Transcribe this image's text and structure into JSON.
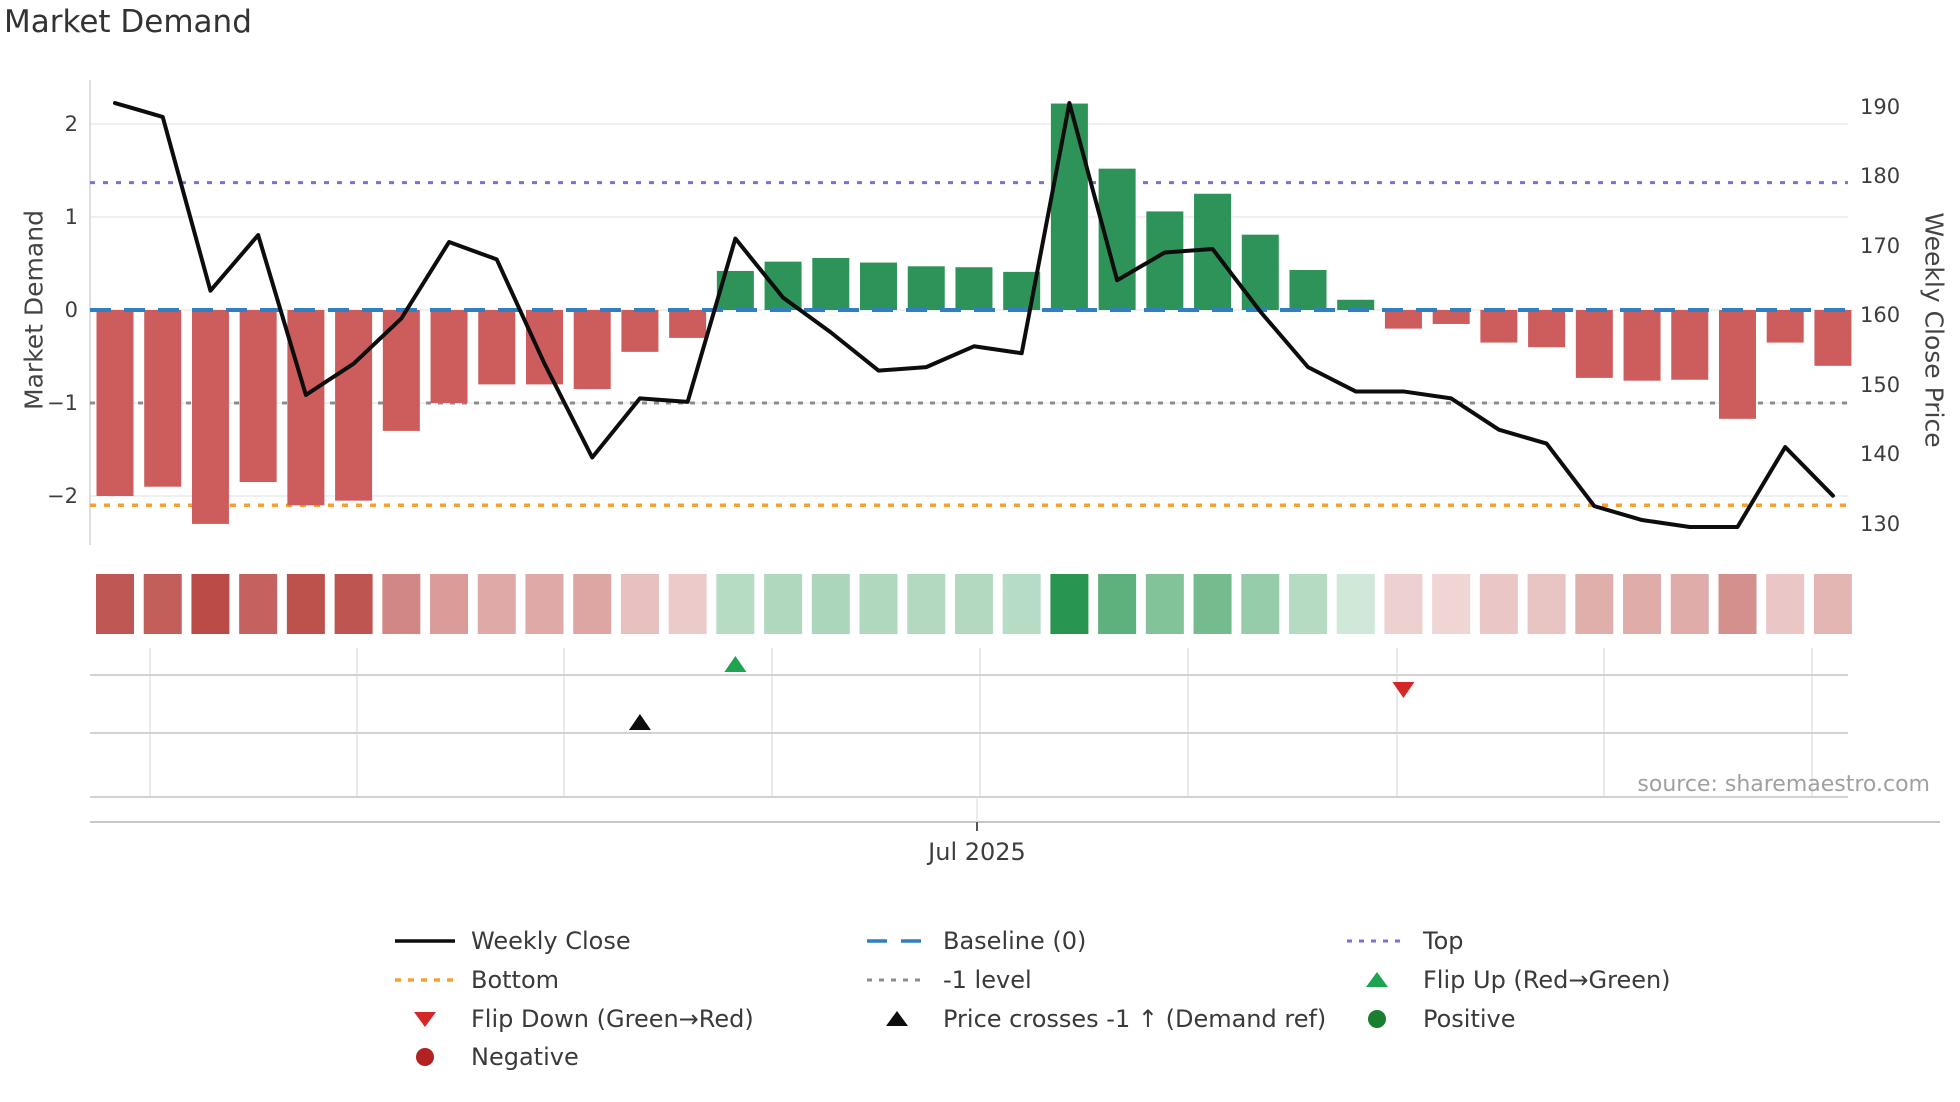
{
  "title": "Market Demand",
  "left_axis": {
    "label": "Market Demand",
    "tick_labels": [
      "2",
      "1",
      "0",
      "−1",
      "−2"
    ],
    "tick_values": [
      2,
      1,
      0,
      -1,
      -2
    ]
  },
  "right_axis": {
    "label": "Weekly Close Price",
    "tick_labels": [
      "190",
      "180",
      "170",
      "160",
      "150",
      "140",
      "130"
    ],
    "tick_values": [
      190,
      180,
      170,
      160,
      150,
      140,
      130
    ]
  },
  "x_axis": {
    "tick_label": "Jul 2025"
  },
  "source_text": "source: sharemaestro.com",
  "colors": {
    "bar_negative": "#cd5c5c",
    "bar_positive": "#2e9358",
    "price_line": "#0d0d0d",
    "baseline": "#2f7fc1",
    "top_line": "#7d6fd8",
    "bottom_line": "#f5a030",
    "minus1_line": "#8c8c8c",
    "flip_up": "#1ea351",
    "flip_down": "#d62728",
    "price_cross": "#0d0d0d",
    "positive_dot": "#1a7e2f",
    "negative_dot": "#b22222",
    "strip_red_base": [
      186,
      75,
      70
    ],
    "strip_green_base": [
      40,
      150,
      80
    ]
  },
  "chart_data": {
    "type": "bar+line",
    "n_weeks": 37,
    "series": [
      {
        "name": "Market Demand (bars, left axis)",
        "values": [
          -2.0,
          -1.9,
          -2.3,
          -1.85,
          -2.1,
          -2.05,
          -1.3,
          -1.0,
          -0.8,
          -0.8,
          -0.85,
          -0.45,
          -0.3,
          0.42,
          0.52,
          0.56,
          0.51,
          0.47,
          0.46,
          0.41,
          2.22,
          1.52,
          1.06,
          1.25,
          0.81,
          0.43,
          0.11,
          -0.2,
          -0.15,
          -0.35,
          -0.4,
          -0.73,
          -0.76,
          -0.75,
          -1.17,
          -0.35,
          -0.6
        ]
      },
      {
        "name": "Weekly Close (line, right axis)",
        "values": [
          190.5,
          188.5,
          163.5,
          171.5,
          148.5,
          153,
          159.5,
          170.5,
          168,
          153,
          139.5,
          148,
          147.5,
          171,
          162.5,
          157.5,
          152,
          152.5,
          155.5,
          154.5,
          190.5,
          165,
          169,
          169.5,
          160.5,
          152.5,
          149,
          149,
          148,
          143.5,
          141.5,
          132.5,
          130.5,
          129.5,
          129.5,
          141,
          134
        ]
      }
    ],
    "reference_lines": [
      {
        "name": "Baseline (0)",
        "axis": "demand",
        "value": 0
      },
      {
        "name": "Top",
        "axis": "demand",
        "value": 1.37
      },
      {
        "name": "Bottom",
        "axis": "demand",
        "value": -2.1
      },
      {
        "name": "-1 level",
        "axis": "demand",
        "value": -1
      }
    ],
    "heat_strip": {
      "note": "one tile per week, red/green intensity = |demand|"
    },
    "markers": [
      {
        "type": "flip_up",
        "week": 14
      },
      {
        "type": "flip_down",
        "week": 28
      },
      {
        "type": "price_cross_minus1_up",
        "week": 12
      }
    ],
    "ylim_demand": [
      -2.45,
      2.45
    ],
    "ylim_price": [
      128,
      192
    ],
    "grid": "horizontal",
    "legend_position": "bottom"
  },
  "legend": {
    "items": [
      {
        "label": "Weekly Close",
        "swatch": "line_black"
      },
      {
        "label": "Baseline (0)",
        "swatch": "dash_blue"
      },
      {
        "label": "Top",
        "swatch": "dot_purple"
      },
      {
        "label": "Bottom",
        "swatch": "dot_orange"
      },
      {
        "label": "-1 level",
        "swatch": "dot_gray"
      },
      {
        "label": "Flip Up (Red→Green)",
        "swatch": "tri_up_green"
      },
      {
        "label": "Flip Down (Green→Red)",
        "swatch": "tri_down_red"
      },
      {
        "label": "Price crosses -1 ↑ (Demand ref)",
        "swatch": "tri_up_black"
      },
      {
        "label": "Positive",
        "swatch": "circle_green"
      },
      {
        "label": "Negative",
        "swatch": "circle_darkred"
      }
    ]
  }
}
